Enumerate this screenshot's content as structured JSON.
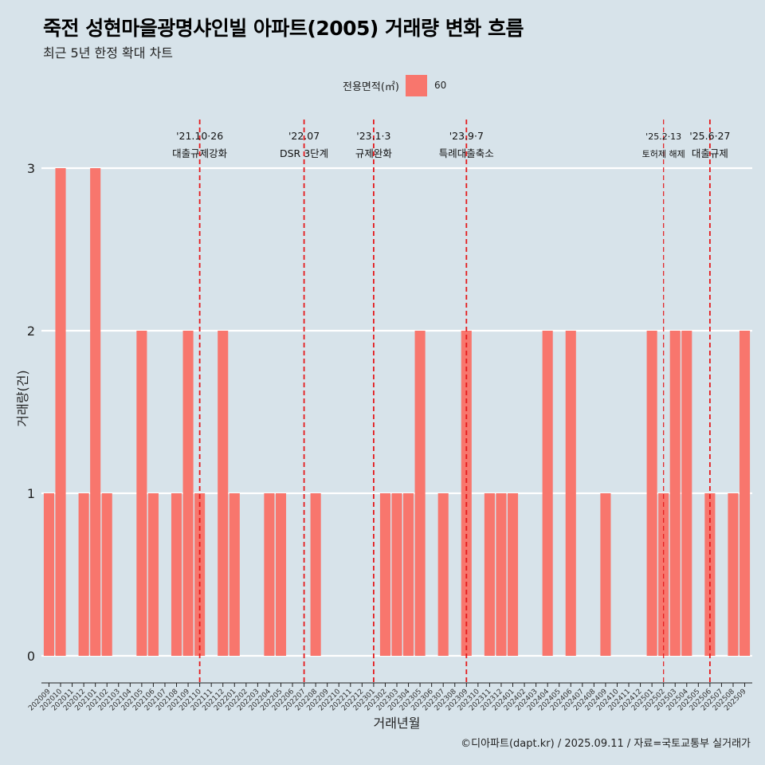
{
  "title": "죽전 성현마을광명샤인빌 아파트(2005) 거래량 변화 흐름",
  "subtitle": "최근 5년 한정 확대 차트",
  "caption": "©디아파트(dapt.kr) / 2025.09.11 / 자료=국토교통부 실거래가",
  "colors": {
    "background": "#d7e3ea",
    "bar": "#f8766d",
    "event_line": "#e41a1c",
    "grid": "#ffffff"
  },
  "legend": {
    "title": "전용면적(㎡)",
    "label": "60"
  },
  "chart_data": {
    "type": "bar",
    "title": "죽전 성현마을광명샤인빌 아파트(2005) 거래량 변화 흐름",
    "xlabel": "거래년월",
    "ylabel": "거래량(건)",
    "ylim": [
      0,
      3
    ],
    "yticks": [
      0,
      1,
      2,
      3
    ],
    "categories": [
      "202009",
      "202010",
      "202011",
      "202012",
      "202101",
      "202102",
      "202103",
      "202104",
      "202105",
      "202106",
      "202107",
      "202108",
      "202109",
      "202110",
      "202111",
      "202112",
      "202201",
      "202202",
      "202203",
      "202204",
      "202205",
      "202206",
      "202207",
      "202208",
      "202209",
      "202210",
      "202211",
      "202212",
      "202301",
      "202302",
      "202303",
      "202304",
      "202305",
      "202306",
      "202307",
      "202308",
      "202309",
      "202310",
      "202311",
      "202312",
      "202401",
      "202402",
      "202403",
      "202404",
      "202405",
      "202406",
      "202407",
      "202408",
      "202409",
      "202410",
      "202411",
      "202412",
      "202501",
      "202502",
      "202503",
      "202504",
      "202505",
      "202506",
      "202507",
      "202508",
      "202509"
    ],
    "series": [
      {
        "name": "60",
        "values": [
          1,
          3,
          0,
          1,
          3,
          1,
          0,
          0,
          2,
          1,
          0,
          1,
          2,
          1,
          0,
          2,
          1,
          0,
          0,
          1,
          1,
          0,
          0,
          1,
          0,
          0,
          0,
          0,
          0,
          1,
          1,
          1,
          2,
          0,
          1,
          0,
          2,
          0,
          1,
          1,
          1,
          0,
          0,
          2,
          0,
          2,
          0,
          0,
          1,
          0,
          0,
          0,
          2,
          1,
          2,
          2,
          0,
          1,
          0,
          1,
          2
        ]
      }
    ],
    "events": [
      {
        "category": "202110",
        "label_top": "'21.10·26",
        "label_bottom": "대출규제강화",
        "small": false
      },
      {
        "category": "202207",
        "label_top": "'22.07",
        "label_bottom": "DSR 3단계",
        "small": false
      },
      {
        "category": "202301",
        "label_top": "'23.1·3",
        "label_bottom": "규제완화",
        "small": false
      },
      {
        "category": "202309",
        "label_top": "'23.9·7",
        "label_bottom": "특례대출축소",
        "small": false
      },
      {
        "category": "202502",
        "label_top": "'25.2·13",
        "label_bottom": "토허제 해제",
        "small": true
      },
      {
        "category": "202506",
        "label_top": "'25.6·27",
        "label_bottom": "대출규제",
        "small": false
      }
    ]
  }
}
